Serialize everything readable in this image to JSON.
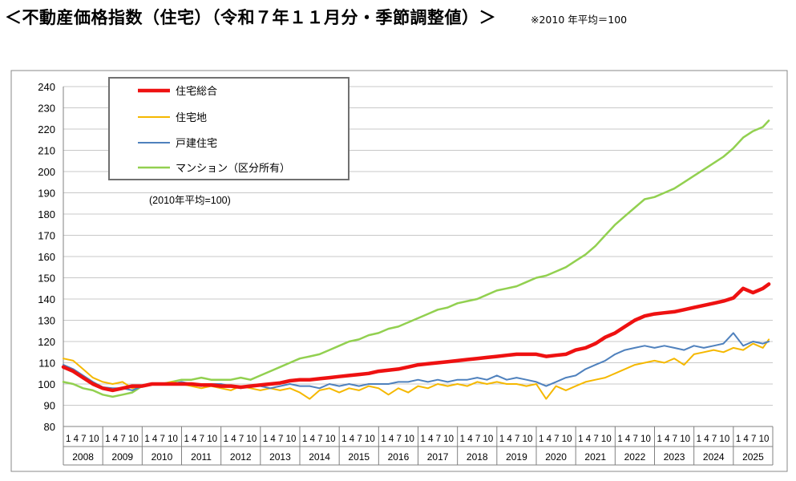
{
  "header": {
    "title": "＜不動産価格指数（住宅）（令和７年１１月分・季節調整値）＞",
    "note": "※2010 年平均＝100"
  },
  "chart_data": {
    "type": "line",
    "yticks": [
      80,
      90,
      100,
      110,
      120,
      130,
      140,
      150,
      160,
      170,
      180,
      190,
      200,
      210,
      220,
      230,
      240
    ],
    "ylim": [
      80,
      240
    ],
    "grid": true,
    "month_tick_label": "1 4 7 10",
    "years": [
      "2008",
      "2009",
      "2010",
      "2011",
      "2012",
      "2013",
      "2014",
      "2015",
      "2016",
      "2017",
      "2018",
      "2019",
      "2020",
      "2021",
      "2022",
      "2023",
      "2024",
      "2025"
    ],
    "legend_position": "top-left",
    "inner_note": "(2010年平均=100)",
    "series": [
      {
        "name": "住宅総合",
        "color": "#ee1111",
        "width": 4.5,
        "values": [
          [
            2008.0,
            108
          ],
          [
            2008.25,
            106
          ],
          [
            2008.5,
            103
          ],
          [
            2008.75,
            100
          ],
          [
            2009.0,
            98
          ],
          [
            2009.25,
            97
          ],
          [
            2009.5,
            98
          ],
          [
            2009.75,
            99
          ],
          [
            2010.0,
            99
          ],
          [
            2010.25,
            100
          ],
          [
            2010.5,
            100
          ],
          [
            2010.75,
            100
          ],
          [
            2011.0,
            100
          ],
          [
            2011.25,
            100
          ],
          [
            2011.5,
            99.5
          ],
          [
            2011.75,
            99.5
          ],
          [
            2012.0,
            99
          ],
          [
            2012.25,
            99
          ],
          [
            2012.5,
            98.5
          ],
          [
            2012.75,
            99
          ],
          [
            2013.0,
            99.5
          ],
          [
            2013.25,
            100
          ],
          [
            2013.5,
            100.5
          ],
          [
            2013.75,
            101.5
          ],
          [
            2014.0,
            102
          ],
          [
            2014.25,
            102
          ],
          [
            2014.5,
            102.5
          ],
          [
            2014.75,
            103
          ],
          [
            2015.0,
            103.5
          ],
          [
            2015.25,
            104
          ],
          [
            2015.5,
            104.5
          ],
          [
            2015.75,
            105
          ],
          [
            2016.0,
            106
          ],
          [
            2016.25,
            106.5
          ],
          [
            2016.5,
            107
          ],
          [
            2016.75,
            108
          ],
          [
            2017.0,
            109
          ],
          [
            2017.25,
            109.5
          ],
          [
            2017.5,
            110
          ],
          [
            2017.75,
            110.5
          ],
          [
            2018.0,
            111
          ],
          [
            2018.25,
            111.5
          ],
          [
            2018.5,
            112
          ],
          [
            2018.75,
            112.5
          ],
          [
            2019.0,
            113
          ],
          [
            2019.25,
            113.5
          ],
          [
            2019.5,
            114
          ],
          [
            2019.75,
            114
          ],
          [
            2020.0,
            114
          ],
          [
            2020.25,
            113
          ],
          [
            2020.5,
            113.5
          ],
          [
            2020.75,
            114
          ],
          [
            2021.0,
            116
          ],
          [
            2021.25,
            117
          ],
          [
            2021.5,
            119
          ],
          [
            2021.75,
            122
          ],
          [
            2022.0,
            124
          ],
          [
            2022.25,
            127
          ],
          [
            2022.5,
            130
          ],
          [
            2022.75,
            132
          ],
          [
            2023.0,
            133
          ],
          [
            2023.25,
            133.5
          ],
          [
            2023.5,
            134
          ],
          [
            2023.75,
            135
          ],
          [
            2024.0,
            136
          ],
          [
            2024.25,
            137
          ],
          [
            2024.5,
            138
          ],
          [
            2024.75,
            139
          ],
          [
            2025.0,
            140.5
          ],
          [
            2025.25,
            145
          ],
          [
            2025.5,
            143
          ],
          [
            2025.75,
            145
          ],
          [
            2025.9,
            147
          ]
        ]
      },
      {
        "name": "住宅地",
        "color": "#f5b800",
        "width": 2,
        "values": [
          [
            2008.0,
            112
          ],
          [
            2008.25,
            111
          ],
          [
            2008.5,
            107
          ],
          [
            2008.75,
            103
          ],
          [
            2009.0,
            101
          ],
          [
            2009.25,
            100
          ],
          [
            2009.5,
            101
          ],
          [
            2009.75,
            98
          ],
          [
            2010.0,
            99
          ],
          [
            2010.25,
            100
          ],
          [
            2010.5,
            100
          ],
          [
            2010.75,
            101
          ],
          [
            2011.0,
            100
          ],
          [
            2011.25,
            99
          ],
          [
            2011.5,
            98
          ],
          [
            2011.75,
            99
          ],
          [
            2012.0,
            98
          ],
          [
            2012.25,
            97
          ],
          [
            2012.5,
            99
          ],
          [
            2012.75,
            98
          ],
          [
            2013.0,
            97
          ],
          [
            2013.25,
            98
          ],
          [
            2013.5,
            97
          ],
          [
            2013.75,
            98
          ],
          [
            2014.0,
            96
          ],
          [
            2014.25,
            93
          ],
          [
            2014.5,
            97
          ],
          [
            2014.75,
            98
          ],
          [
            2015.0,
            96
          ],
          [
            2015.25,
            98
          ],
          [
            2015.5,
            97
          ],
          [
            2015.75,
            99
          ],
          [
            2016.0,
            98
          ],
          [
            2016.25,
            95
          ],
          [
            2016.5,
            98
          ],
          [
            2016.75,
            96
          ],
          [
            2017.0,
            99
          ],
          [
            2017.25,
            98
          ],
          [
            2017.5,
            100
          ],
          [
            2017.75,
            99
          ],
          [
            2018.0,
            100
          ],
          [
            2018.25,
            99
          ],
          [
            2018.5,
            101
          ],
          [
            2018.75,
            100
          ],
          [
            2019.0,
            101
          ],
          [
            2019.25,
            100
          ],
          [
            2019.5,
            100
          ],
          [
            2019.75,
            99
          ],
          [
            2020.0,
            100
          ],
          [
            2020.25,
            93
          ],
          [
            2020.5,
            99
          ],
          [
            2020.75,
            97
          ],
          [
            2021.0,
            99
          ],
          [
            2021.25,
            101
          ],
          [
            2021.5,
            102
          ],
          [
            2021.75,
            103
          ],
          [
            2022.0,
            105
          ],
          [
            2022.25,
            107
          ],
          [
            2022.5,
            109
          ],
          [
            2022.75,
            110
          ],
          [
            2023.0,
            111
          ],
          [
            2023.25,
            110
          ],
          [
            2023.5,
            112
          ],
          [
            2023.75,
            109
          ],
          [
            2024.0,
            114
          ],
          [
            2024.25,
            115
          ],
          [
            2024.5,
            116
          ],
          [
            2024.75,
            115
          ],
          [
            2025.0,
            117
          ],
          [
            2025.25,
            116
          ],
          [
            2025.5,
            119
          ],
          [
            2025.75,
            117
          ],
          [
            2025.9,
            121
          ]
        ]
      },
      {
        "name": "戸建住宅",
        "color": "#4f81bd",
        "width": 2,
        "values": [
          [
            2008.0,
            109
          ],
          [
            2008.25,
            107
          ],
          [
            2008.5,
            104
          ],
          [
            2008.75,
            101
          ],
          [
            2009.0,
            98.5
          ],
          [
            2009.25,
            98
          ],
          [
            2009.5,
            98
          ],
          [
            2009.75,
            97
          ],
          [
            2010.0,
            99
          ],
          [
            2010.25,
            100
          ],
          [
            2010.5,
            100
          ],
          [
            2010.75,
            100
          ],
          [
            2011.0,
            101
          ],
          [
            2011.25,
            100
          ],
          [
            2011.5,
            99
          ],
          [
            2011.75,
            100
          ],
          [
            2012.0,
            100
          ],
          [
            2012.25,
            99
          ],
          [
            2012.5,
            98
          ],
          [
            2012.75,
            99
          ],
          [
            2013.0,
            99
          ],
          [
            2013.25,
            98
          ],
          [
            2013.5,
            99
          ],
          [
            2013.75,
            100
          ],
          [
            2014.0,
            99
          ],
          [
            2014.25,
            99
          ],
          [
            2014.5,
            98
          ],
          [
            2014.75,
            100
          ],
          [
            2015.0,
            99
          ],
          [
            2015.25,
            100
          ],
          [
            2015.5,
            99
          ],
          [
            2015.75,
            100
          ],
          [
            2016.0,
            100
          ],
          [
            2016.25,
            100
          ],
          [
            2016.5,
            101
          ],
          [
            2016.75,
            101
          ],
          [
            2017.0,
            102
          ],
          [
            2017.25,
            101
          ],
          [
            2017.5,
            102
          ],
          [
            2017.75,
            101
          ],
          [
            2018.0,
            102
          ],
          [
            2018.25,
            102
          ],
          [
            2018.5,
            103
          ],
          [
            2018.75,
            102
          ],
          [
            2019.0,
            104
          ],
          [
            2019.25,
            102
          ],
          [
            2019.5,
            103
          ],
          [
            2019.75,
            102
          ],
          [
            2020.0,
            101
          ],
          [
            2020.25,
            99
          ],
          [
            2020.5,
            101
          ],
          [
            2020.75,
            103
          ],
          [
            2021.0,
            104
          ],
          [
            2021.25,
            107
          ],
          [
            2021.5,
            109
          ],
          [
            2021.75,
            111
          ],
          [
            2022.0,
            114
          ],
          [
            2022.25,
            116
          ],
          [
            2022.5,
            117
          ],
          [
            2022.75,
            118
          ],
          [
            2023.0,
            117
          ],
          [
            2023.25,
            118
          ],
          [
            2023.5,
            117
          ],
          [
            2023.75,
            116
          ],
          [
            2024.0,
            118
          ],
          [
            2024.25,
            117
          ],
          [
            2024.5,
            118
          ],
          [
            2024.75,
            119
          ],
          [
            2025.0,
            124
          ],
          [
            2025.25,
            118
          ],
          [
            2025.5,
            120
          ],
          [
            2025.75,
            119
          ],
          [
            2025.9,
            120
          ]
        ]
      },
      {
        "name": "マンション（区分所有）",
        "color": "#92d050",
        "width": 2.5,
        "values": [
          [
            2008.0,
            101
          ],
          [
            2008.25,
            100
          ],
          [
            2008.5,
            98
          ],
          [
            2008.75,
            97
          ],
          [
            2009.0,
            95
          ],
          [
            2009.25,
            94
          ],
          [
            2009.5,
            95
          ],
          [
            2009.75,
            96
          ],
          [
            2010.0,
            99
          ],
          [
            2010.25,
            100
          ],
          [
            2010.5,
            100
          ],
          [
            2010.75,
            101
          ],
          [
            2011.0,
            102
          ],
          [
            2011.25,
            102
          ],
          [
            2011.5,
            103
          ],
          [
            2011.75,
            102
          ],
          [
            2012.0,
            102
          ],
          [
            2012.25,
            102
          ],
          [
            2012.5,
            103
          ],
          [
            2012.75,
            102
          ],
          [
            2013.0,
            104
          ],
          [
            2013.25,
            106
          ],
          [
            2013.5,
            108
          ],
          [
            2013.75,
            110
          ],
          [
            2014.0,
            112
          ],
          [
            2014.25,
            113
          ],
          [
            2014.5,
            114
          ],
          [
            2014.75,
            116
          ],
          [
            2015.0,
            118
          ],
          [
            2015.25,
            120
          ],
          [
            2015.5,
            121
          ],
          [
            2015.75,
            123
          ],
          [
            2016.0,
            124
          ],
          [
            2016.25,
            126
          ],
          [
            2016.5,
            127
          ],
          [
            2016.75,
            129
          ],
          [
            2017.0,
            131
          ],
          [
            2017.25,
            133
          ],
          [
            2017.5,
            135
          ],
          [
            2017.75,
            136
          ],
          [
            2018.0,
            138
          ],
          [
            2018.25,
            139
          ],
          [
            2018.5,
            140
          ],
          [
            2018.75,
            142
          ],
          [
            2019.0,
            144
          ],
          [
            2019.25,
            145
          ],
          [
            2019.5,
            146
          ],
          [
            2019.75,
            148
          ],
          [
            2020.0,
            150
          ],
          [
            2020.25,
            151
          ],
          [
            2020.5,
            153
          ],
          [
            2020.75,
            155
          ],
          [
            2021.0,
            158
          ],
          [
            2021.25,
            161
          ],
          [
            2021.5,
            165
          ],
          [
            2021.75,
            170
          ],
          [
            2022.0,
            175
          ],
          [
            2022.25,
            179
          ],
          [
            2022.5,
            183
          ],
          [
            2022.75,
            187
          ],
          [
            2023.0,
            188
          ],
          [
            2023.25,
            190
          ],
          [
            2023.5,
            192
          ],
          [
            2023.75,
            195
          ],
          [
            2024.0,
            198
          ],
          [
            2024.25,
            201
          ],
          [
            2024.5,
            204
          ],
          [
            2024.75,
            207
          ],
          [
            2025.0,
            211
          ],
          [
            2025.25,
            216
          ],
          [
            2025.5,
            219
          ],
          [
            2025.75,
            221
          ],
          [
            2025.9,
            224
          ]
        ]
      }
    ]
  }
}
